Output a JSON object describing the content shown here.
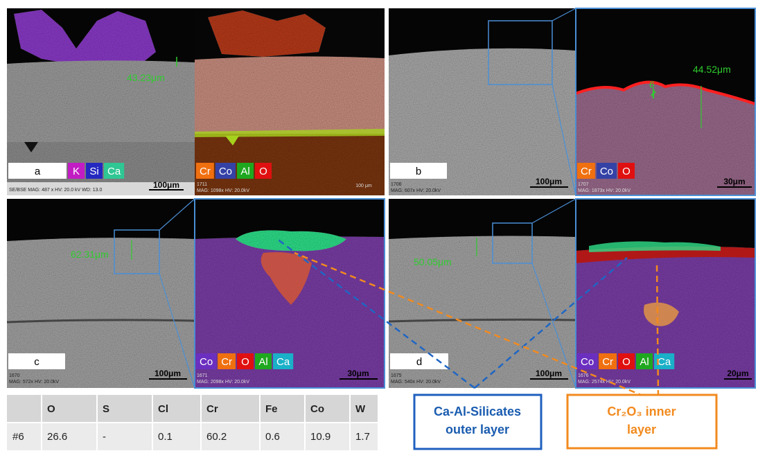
{
  "panels": [
    {
      "label": "a",
      "sem": {
        "info": [
          "SE/BSE  MAG: 487 x  HV: 20.0 kV  WD: 13.0"
        ],
        "scale": "100μm",
        "thickness": "43.23μm",
        "elements": [
          "K",
          "Si",
          "Ca"
        ]
      },
      "eds": {
        "info": [
          "1711",
          "MAG: 1098x  HV: 20.0kV"
        ],
        "scale": "100 μm",
        "elements": [
          "Cr",
          "Co",
          "Al",
          "O"
        ]
      }
    },
    {
      "label": "b",
      "sem": {
        "info": [
          "1706",
          "MAG: 607x  HV: 20.0kV"
        ],
        "scale": "100μm"
      },
      "eds": {
        "info": [
          "1707",
          "MAG: 1873x  HV: 20.0kV"
        ],
        "scale": "30μm",
        "thickness": "44.52μm",
        "point": "6",
        "elements": [
          "Cr",
          "Co",
          "O"
        ]
      }
    },
    {
      "label": "c",
      "sem": {
        "info": [
          "1670",
          "MAG: 572x  HV: 20.0kV"
        ],
        "scale": "100μm",
        "thickness": "62.31μm"
      },
      "eds": {
        "info": [
          "1671",
          "MAG: 2098x  HV: 20.0kV"
        ],
        "scale": "30μm",
        "elements": [
          "Co",
          "Cr",
          "O",
          "Al",
          "Ca"
        ]
      }
    },
    {
      "label": "d",
      "sem": {
        "info": [
          "1675",
          "MAG: 540x  HV: 20.0kV"
        ],
        "scale": "100μm",
        "thickness": "50.05μm"
      },
      "eds": {
        "info": [
          "1676",
          "MAG: 2574x  HV: 20.0kV"
        ],
        "scale": "20μm",
        "elements": [
          "Co",
          "Cr",
          "O",
          "Al",
          "Ca"
        ]
      }
    }
  ],
  "table": {
    "header": [
      "O",
      "S",
      "Cl",
      "Cr",
      "Fe",
      "Co",
      "W"
    ],
    "rows": [
      [
        "#6",
        26.6,
        "-",
        0.1,
        60.2,
        0.6,
        10.9,
        1.7
      ]
    ]
  },
  "callouts": [
    {
      "lines": [
        "Ca-Al-Silicates",
        "outer layer"
      ]
    },
    {
      "lines": [
        "Cr₂O₃ inner",
        "layer"
      ]
    }
  ]
}
